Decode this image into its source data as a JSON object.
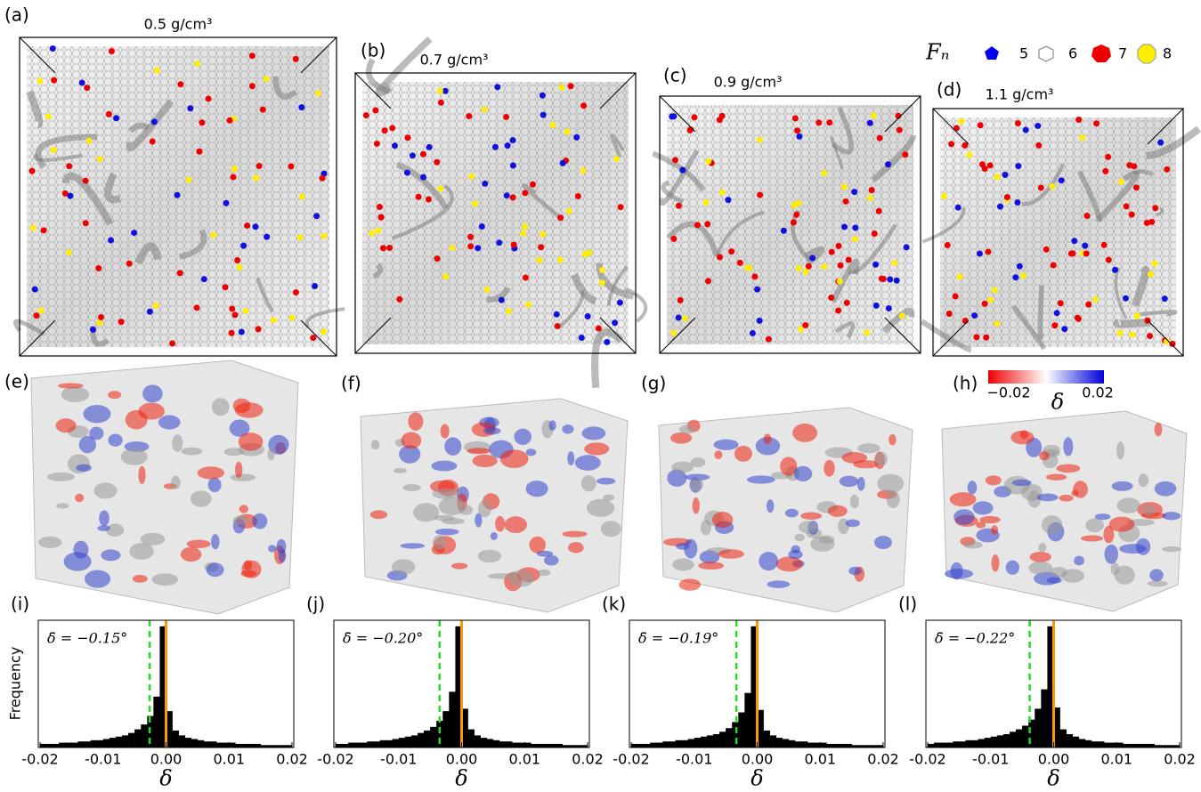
{
  "panels": [
    {
      "label": "(a)",
      "density": "0.5 g/cm³"
    },
    {
      "label": "(b)",
      "density": "0.7 g/cm³"
    },
    {
      "label": "(c)",
      "density": "0.9 g/cm³"
    },
    {
      "label": "(d)",
      "density": "1.1 g/cm³"
    }
  ],
  "legend": {
    "symbol": "Fₙ",
    "entries": [
      "5",
      "6",
      "7",
      "8"
    ]
  },
  "cube_panels": [
    "(e)",
    "(f)",
    "(g)",
    "(h)"
  ],
  "colorbar": {
    "min_label": "−0.02",
    "max_label": "0.02",
    "symbol": "δ"
  },
  "chart_data": [
    {
      "type": "histogram",
      "panel_label": "(i)",
      "y_label": "Frequency",
      "x_label": "δ",
      "annotation": "δ̄ = −0.15°",
      "mean": -0.0026,
      "mean_color": "#22dd22",
      "reference": 0,
      "reference_color": "#ff9900",
      "color": "#000000",
      "bins": [
        -0.02,
        -0.019,
        -0.018,
        -0.017,
        -0.016,
        -0.015,
        -0.014,
        -0.013,
        -0.012,
        -0.011,
        -0.01,
        -0.009,
        -0.008,
        -0.007,
        -0.006,
        -0.005,
        -0.004,
        -0.003,
        -0.002,
        -0.001,
        0.0,
        0.001,
        0.002,
        0.003,
        0.004,
        0.005,
        0.006,
        0.007,
        0.008,
        0.009,
        0.01,
        0.011,
        0.012,
        0.013,
        0.014,
        0.015,
        0.016,
        0.017,
        0.018,
        0.019,
        0.02
      ],
      "values": [
        3,
        3,
        3,
        4,
        4,
        4,
        5,
        5,
        6,
        6,
        7,
        8,
        9,
        10,
        12,
        15,
        19,
        26,
        42,
        100,
        30,
        14,
        10,
        8,
        7,
        6,
        5,
        5,
        4,
        4,
        4,
        3,
        3,
        3,
        3,
        2,
        2,
        2,
        2,
        2
      ],
      "xlim": [
        -0.02,
        0.02
      ],
      "ylim": [
        0,
        105
      ],
      "xticks": [
        -0.02,
        -0.01,
        {
          "value": 0,
          "label": "0.00"
        },
        0.01,
        0.02
      ]
    },
    {
      "type": "histogram",
      "panel_label": "(j)",
      "x_label": "δ",
      "annotation": "δ̄ = −0.20°",
      "mean": -0.0035,
      "mean_color": "#22dd22",
      "reference": 0,
      "reference_color": "#ff9900",
      "color": "#000000",
      "bins": [
        -0.02,
        -0.019,
        -0.018,
        -0.017,
        -0.016,
        -0.015,
        -0.014,
        -0.013,
        -0.012,
        -0.011,
        -0.01,
        -0.009,
        -0.008,
        -0.007,
        -0.006,
        -0.005,
        -0.004,
        -0.003,
        -0.002,
        -0.001,
        0.0,
        0.001,
        0.002,
        0.003,
        0.004,
        0.005,
        0.006,
        0.007,
        0.008,
        0.009,
        0.01,
        0.011,
        0.012,
        0.013,
        0.014,
        0.015,
        0.016,
        0.017,
        0.018,
        0.019,
        0.02
      ],
      "values": [
        3,
        3,
        4,
        4,
        4,
        5,
        5,
        6,
        6,
        7,
        8,
        9,
        10,
        12,
        14,
        17,
        22,
        30,
        46,
        100,
        32,
        15,
        10,
        8,
        7,
        6,
        5,
        5,
        4,
        4,
        4,
        3,
        3,
        3,
        3,
        3,
        2,
        2,
        2,
        2
      ],
      "xlim": [
        -0.02,
        0.02
      ],
      "ylim": [
        0,
        105
      ],
      "xticks": [
        -0.02,
        -0.01,
        {
          "value": 0,
          "label": "0.00"
        },
        0.01,
        0.02
      ]
    },
    {
      "type": "histogram",
      "panel_label": "(k)",
      "x_label": "δ",
      "annotation": "δ̄ = −0.19°",
      "mean": -0.0033,
      "mean_color": "#22dd22",
      "reference": 0,
      "reference_color": "#ff9900",
      "color": "#000000",
      "bins": [
        -0.02,
        -0.019,
        -0.018,
        -0.017,
        -0.016,
        -0.015,
        -0.014,
        -0.013,
        -0.012,
        -0.011,
        -0.01,
        -0.009,
        -0.008,
        -0.007,
        -0.006,
        -0.005,
        -0.004,
        -0.003,
        -0.002,
        -0.001,
        0.0,
        0.001,
        0.002,
        0.003,
        0.004,
        0.005,
        0.006,
        0.007,
        0.008,
        0.009,
        0.01,
        0.011,
        0.012,
        0.013,
        0.014,
        0.015,
        0.016,
        0.017,
        0.018,
        0.019,
        0.02
      ],
      "values": [
        3,
        3,
        3,
        4,
        4,
        5,
        5,
        6,
        6,
        7,
        8,
        9,
        10,
        11,
        13,
        16,
        21,
        29,
        45,
        100,
        31,
        14,
        10,
        8,
        7,
        6,
        5,
        5,
        4,
        4,
        4,
        3,
        3,
        3,
        3,
        2,
        2,
        2,
        2,
        2
      ],
      "xlim": [
        -0.02,
        0.02
      ],
      "ylim": [
        0,
        105
      ],
      "xticks": [
        -0.02,
        -0.01,
        {
          "value": 0,
          "label": "0.00"
        },
        0.01,
        0.02
      ]
    },
    {
      "type": "histogram",
      "panel_label": "(l)",
      "x_label": "δ",
      "annotation": "δ̄ = −0.22°",
      "mean": -0.0038,
      "mean_color": "#22dd22",
      "reference": 0,
      "reference_color": "#ff9900",
      "color": "#000000",
      "bins": [
        -0.02,
        -0.019,
        -0.018,
        -0.017,
        -0.016,
        -0.015,
        -0.014,
        -0.013,
        -0.012,
        -0.011,
        -0.01,
        -0.009,
        -0.008,
        -0.007,
        -0.006,
        -0.005,
        -0.004,
        -0.003,
        -0.002,
        -0.001,
        0.0,
        0.001,
        0.002,
        0.003,
        0.004,
        0.005,
        0.006,
        0.007,
        0.008,
        0.009,
        0.01,
        0.011,
        0.012,
        0.013,
        0.014,
        0.015,
        0.016,
        0.017,
        0.018,
        0.019,
        0.02
      ],
      "values": [
        3,
        4,
        4,
        4,
        5,
        5,
        6,
        6,
        7,
        8,
        9,
        10,
        11,
        13,
        15,
        18,
        23,
        32,
        48,
        100,
        33,
        15,
        11,
        9,
        7,
        6,
        5,
        5,
        4,
        4,
        4,
        3,
        3,
        3,
        3,
        3,
        2,
        2,
        2,
        2
      ],
      "xlim": [
        -0.02,
        0.02
      ],
      "ylim": [
        0,
        105
      ],
      "xticks": [
        -0.02,
        -0.01,
        {
          "value": 0,
          "label": "0.00"
        },
        0.01,
        0.02
      ]
    }
  ]
}
